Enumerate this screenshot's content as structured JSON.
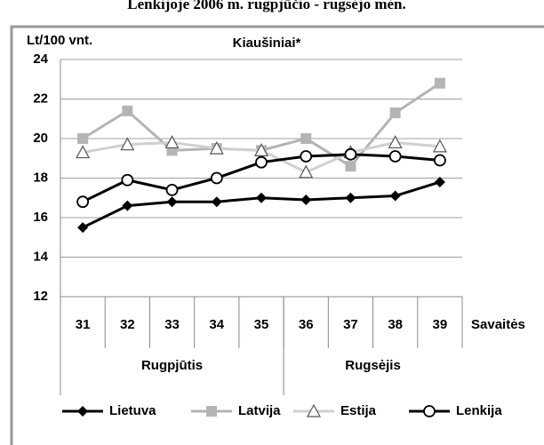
{
  "chart_data": {
    "type": "line",
    "header": "Lenkijoje 2006 m. rugpjūčio - rugsėjo mėn.",
    "title": "Kiaušiniai*",
    "y_label": "Lt/100 vnt.",
    "x_label": "Savaitės",
    "categories": [
      "31",
      "32",
      "33",
      "34",
      "35",
      "36",
      "37",
      "38",
      "39"
    ],
    "groups": [
      {
        "label": "Rugpjūtis",
        "count": 5
      },
      {
        "label": "Rugsėjis",
        "count": 4
      }
    ],
    "series": [
      {
        "name": "Lietuva",
        "color": "#000000",
        "marker": "diamond",
        "values": [
          15.5,
          16.6,
          16.8,
          16.8,
          17.0,
          16.9,
          17.0,
          17.1,
          17.8
        ]
      },
      {
        "name": "Latvija",
        "color": "#b4b4b4",
        "marker": "square",
        "values": [
          20.0,
          21.4,
          19.4,
          19.5,
          19.4,
          20.0,
          18.6,
          21.3,
          22.8
        ]
      },
      {
        "name": "Estija",
        "color": "#d0d0d0",
        "marker": "triangle",
        "values": [
          19.3,
          19.7,
          19.8,
          19.5,
          19.4,
          18.3,
          19.3,
          19.8,
          19.6
        ]
      },
      {
        "name": "Lenkija",
        "color": "#000000",
        "marker": "circle",
        "values": [
          16.8,
          17.9,
          17.4,
          18.0,
          18.8,
          19.1,
          19.2,
          19.1,
          18.9
        ]
      }
    ],
    "ylim": [
      12,
      24
    ],
    "yticks": [
      12,
      14,
      16,
      18,
      20,
      22,
      24
    ],
    "grid": true,
    "legend": "bottom"
  }
}
